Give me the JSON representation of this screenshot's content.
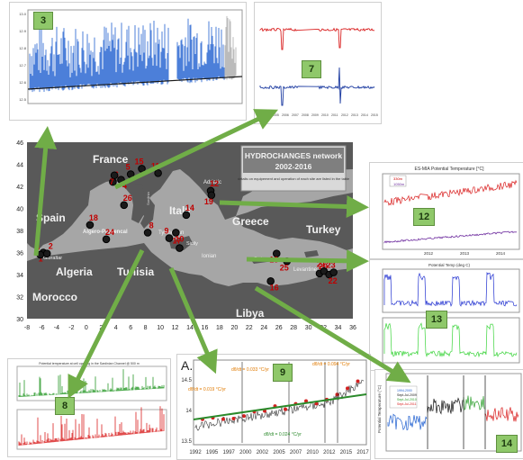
{
  "map": {
    "countries": {
      "france": "France",
      "spain": "Spain",
      "italy": "Italy",
      "greece": "Greece",
      "turkey": "Turkey",
      "algeria": "Algeria",
      "tunisia": "Tunisia",
      "morocco": "Morocco",
      "libya": "Libya"
    },
    "seas": {
      "gibraltar": "Gibraltar",
      "algero_provencal": "Algero-Provencal",
      "adriatic": "Adriatic",
      "tyrrhenian": "Tyrrhenian",
      "sicily": "Sicily",
      "ionian": "Ionian",
      "creta": "Creta",
      "levantine": "Levantine",
      "sardinia": "Sardinia"
    },
    "info_box": {
      "title": "HYDROCHANGES network",
      "years": "2002-2016",
      "note": "details on equipement and operation of each site are listed in the table"
    },
    "lat_ticks": [
      "46",
      "44",
      "42",
      "40",
      "38",
      "36",
      "34",
      "32",
      "30"
    ],
    "lon_ticks": [
      "-8",
      "-6",
      "-4",
      "-2",
      "0",
      "2",
      "4",
      "6",
      "8",
      "10",
      "12",
      "14",
      "16",
      "18",
      "20",
      "22",
      "24",
      "26",
      "28",
      "30",
      "32",
      "34",
      "36"
    ],
    "stations": [
      {
        "label": "1",
        "lon": -5.8,
        "lat": 36.0
      },
      {
        "label": "2",
        "lon": -5.3,
        "lat": 35.9
      },
      {
        "label": "3",
        "lon": -6.2,
        "lat": 35.8
      },
      {
        "label": "4",
        "lon": 4.7,
        "lat": 42.6
      },
      {
        "label": "5",
        "lon": 6.0,
        "lat": 43.1
      },
      {
        "label": "6",
        "lon": 3.6,
        "lat": 42.4
      },
      {
        "label": "7",
        "lon": 3.8,
        "lat": 43.0
      },
      {
        "label": "8",
        "lon": 8.3,
        "lat": 37.8
      },
      {
        "label": "9",
        "lon": 11.2,
        "lat": 37.3
      },
      {
        "label": "10",
        "lon": 12.1,
        "lat": 37.8
      },
      {
        "label": "11",
        "lon": 9.7,
        "lat": 43.2
      },
      {
        "label": "12",
        "lon": 16.8,
        "lat": 41.6
      },
      {
        "label": "13",
        "lon": 25.7,
        "lat": 35.9
      },
      {
        "label": "14",
        "lon": 13.5,
        "lat": 39.4
      },
      {
        "label": "15",
        "lon": 7.5,
        "lat": 43.6
      },
      {
        "label": "16",
        "lon": 24.9,
        "lat": 33.4
      },
      {
        "label": "17",
        "lon": 12.6,
        "lat": 36.4
      },
      {
        "label": "18",
        "lon": 0.5,
        "lat": 38.5
      },
      {
        "label": "19",
        "lon": 16.9,
        "lat": 41.2
      },
      {
        "label": "20",
        "lon": 31.5,
        "lat": 34.1
      },
      {
        "label": "21",
        "lon": 32.1,
        "lat": 34.3
      },
      {
        "label": "22",
        "lon": 32.8,
        "lat": 34.0
      },
      {
        "label": "23",
        "lon": 33.4,
        "lat": 34.2
      },
      {
        "label": "24",
        "lon": 2.7,
        "lat": 37.2
      },
      {
        "label": "25",
        "lon": 27.1,
        "lat": 35.2
      },
      {
        "label": "26",
        "lon": 5.1,
        "lat": 40.3
      }
    ]
  },
  "panels": {
    "p3": {
      "num": "3",
      "yticks": [
        "13.0",
        "12.9",
        "12.8",
        "12.7",
        "12.6",
        "12.5"
      ]
    },
    "p7": {
      "num": "7",
      "xticks": [
        "2004",
        "2005",
        "2006",
        "2007",
        "2008",
        "2009",
        "2010",
        "2011",
        "2012",
        "2013",
        "2014",
        "2015"
      ]
    },
    "p12": {
      "num": "12",
      "title": "ES-MIA Potential Temperature [°C]",
      "xticks": [
        "2012",
        "2013",
        "2014"
      ],
      "legend1": "330m",
      "legend2": "1050m"
    },
    "p13": {
      "num": "13",
      "title": "Potential Temp (deg C)"
    },
    "p8": {
      "num": "8",
      "title1": "Potential temperature at cell opening in the Sardinian Channel @ 500 m"
    },
    "p9": {
      "num": "9",
      "letter": "A.",
      "trend1": "dθ/dt = 0.019 °C/yr",
      "trend2": "dθ/dt = 0.033 °C/yr",
      "trend3": "dθ/dt = 0.094 °C/yr",
      "trend4": "dθ/dt = 0.024 °C/yr",
      "xticks": [
        "1992",
        "1995",
        "1997",
        "2000",
        "2002",
        "2005",
        "2007",
        "2010",
        "2012",
        "2015",
        "2017"
      ],
      "yticks": [
        "14.5",
        "14",
        "13.5"
      ]
    },
    "p14": {
      "num": "14",
      "ylabel": "Potential Temperature (°C)",
      "legend": [
        "1994-2000",
        "Sept-Jul-2009",
        "Sept-Jul-2010",
        "Sept-Jul-2011"
      ]
    }
  },
  "colors": {
    "sea": "#a6a6a6",
    "land": "#5a5a5a",
    "arrow": "#70ad47",
    "label_red": "#c00000",
    "blue": "#1f5fd0",
    "red": "#d92020",
    "green": "#2ea02e"
  }
}
